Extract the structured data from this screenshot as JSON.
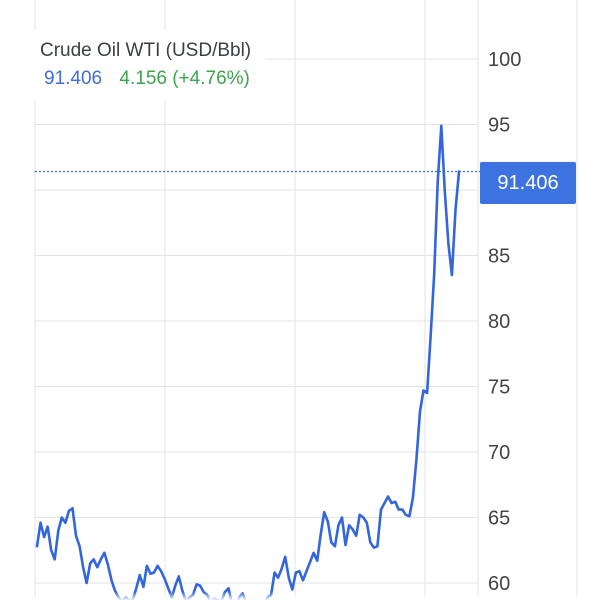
{
  "legend": {
    "title": "Crude Oil WTI (USD/Bbl)",
    "last_value": "91.406",
    "change": "4.156 (+4.76%)"
  },
  "price_tag": "91.406",
  "colors": {
    "line": "#3366dd",
    "change_positive": "#3da34d",
    "last_value": "#3d6fd6",
    "price_tag_bg": "#3d73e0",
    "grid": "#e3e3e3"
  },
  "chart_data": {
    "type": "line",
    "title": "Crude Oil WTI (USD/Bbl)",
    "ylim": [
      58.7,
      104.5
    ],
    "y_ticks": [
      "60",
      "65",
      "70",
      "75",
      "80",
      "85",
      "90",
      "95",
      "100"
    ],
    "last_price": 91.406,
    "grid": true,
    "series": [
      {
        "values": [
          62.8,
          64.6,
          63.5,
          64.3,
          62.5,
          61.8,
          64.0,
          65.0,
          64.6,
          65.5,
          65.7,
          63.6,
          62.8,
          61.2,
          60.0,
          61.5,
          61.8,
          61.2,
          61.8,
          62.3,
          61.4,
          60.2,
          59.4,
          58.9,
          58.6,
          58.9,
          58.7,
          58.7,
          59.6,
          60.6,
          59.7,
          61.3,
          60.7,
          60.8,
          61.3,
          60.9,
          60.3,
          59.6,
          58.9,
          59.8,
          60.5,
          59.4,
          58.6,
          58.9,
          59.1,
          59.9,
          59.8,
          59.3,
          59.1,
          58.5,
          58.8,
          58.7,
          58.6,
          59.3,
          59.6,
          58.4,
          57.6,
          58.9,
          59.2,
          58.4,
          57.7,
          58.3,
          57.9,
          58.6,
          58.2,
          58.9,
          59.1,
          60.8,
          60.4,
          61.1,
          62.0,
          60.4,
          59.5,
          60.8,
          60.9,
          60.2,
          60.9,
          61.6,
          62.3,
          61.7,
          63.7,
          65.4,
          64.7,
          63.1,
          62.8,
          64.4,
          65.0,
          62.9,
          64.4,
          64.1,
          63.6,
          65.2,
          65.0,
          64.6,
          63.1,
          62.7,
          62.8,
          65.6,
          66.1,
          66.6,
          66.1,
          66.2,
          65.6,
          65.6,
          65.2,
          65.1,
          66.5,
          69.4,
          73.1,
          74.7,
          74.5,
          78.8,
          83.6,
          90.6,
          94.9,
          89.9,
          85.9,
          83.5,
          88.5,
          91.4
        ]
      }
    ]
  }
}
